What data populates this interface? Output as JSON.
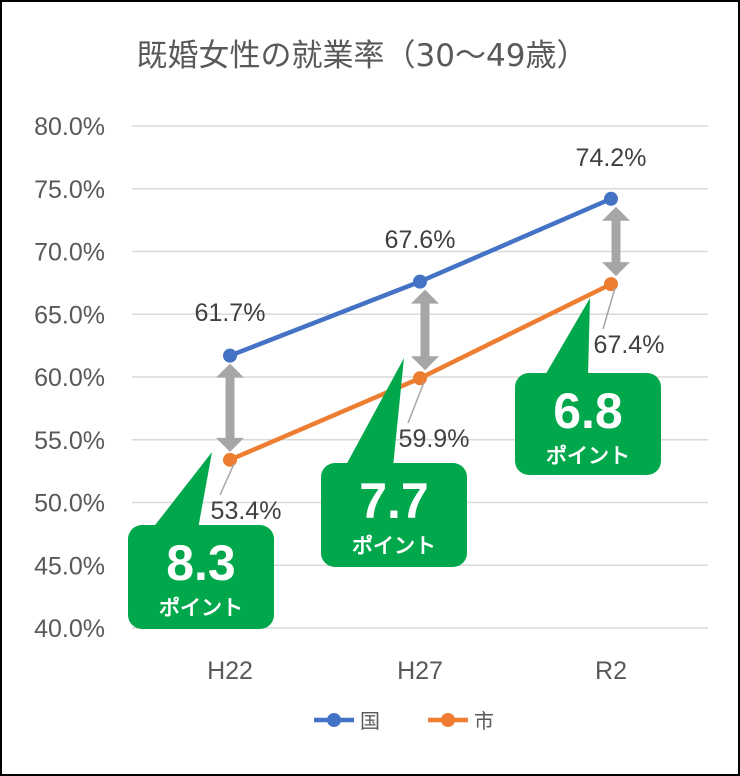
{
  "chart_data": {
    "type": "line",
    "title": "既婚女性の就業率（30〜49歳）",
    "categories": [
      "H22",
      "H27",
      "R2"
    ],
    "ylim": [
      40.0,
      80.0
    ],
    "ytick_step": 5.0,
    "ytick_labels": [
      "40.0%",
      "45.0%",
      "50.0%",
      "55.0%",
      "60.0%",
      "65.0%",
      "70.0%",
      "75.0%",
      "80.0%"
    ],
    "grid": true,
    "legend_position": "bottom",
    "series": [
      {
        "name": "国",
        "color": "#4472C4",
        "values": [
          61.7,
          67.6,
          74.2
        ],
        "labels": [
          "61.7%",
          "67.6%",
          "74.2%"
        ]
      },
      {
        "name": "市",
        "color": "#ED7D31",
        "values": [
          53.4,
          59.9,
          67.4
        ],
        "labels": [
          "53.4%",
          "59.9%",
          "67.4%"
        ]
      }
    ],
    "gap_callouts": [
      {
        "category": "H22",
        "value": "8.3",
        "unit": "ポイント"
      },
      {
        "category": "H27",
        "value": "7.7",
        "unit": "ポイント"
      },
      {
        "category": "R2",
        "value": "6.8",
        "unit": "ポイント"
      }
    ],
    "callout_color": "#00A74B",
    "arrow_color": "#A6A6A6"
  }
}
